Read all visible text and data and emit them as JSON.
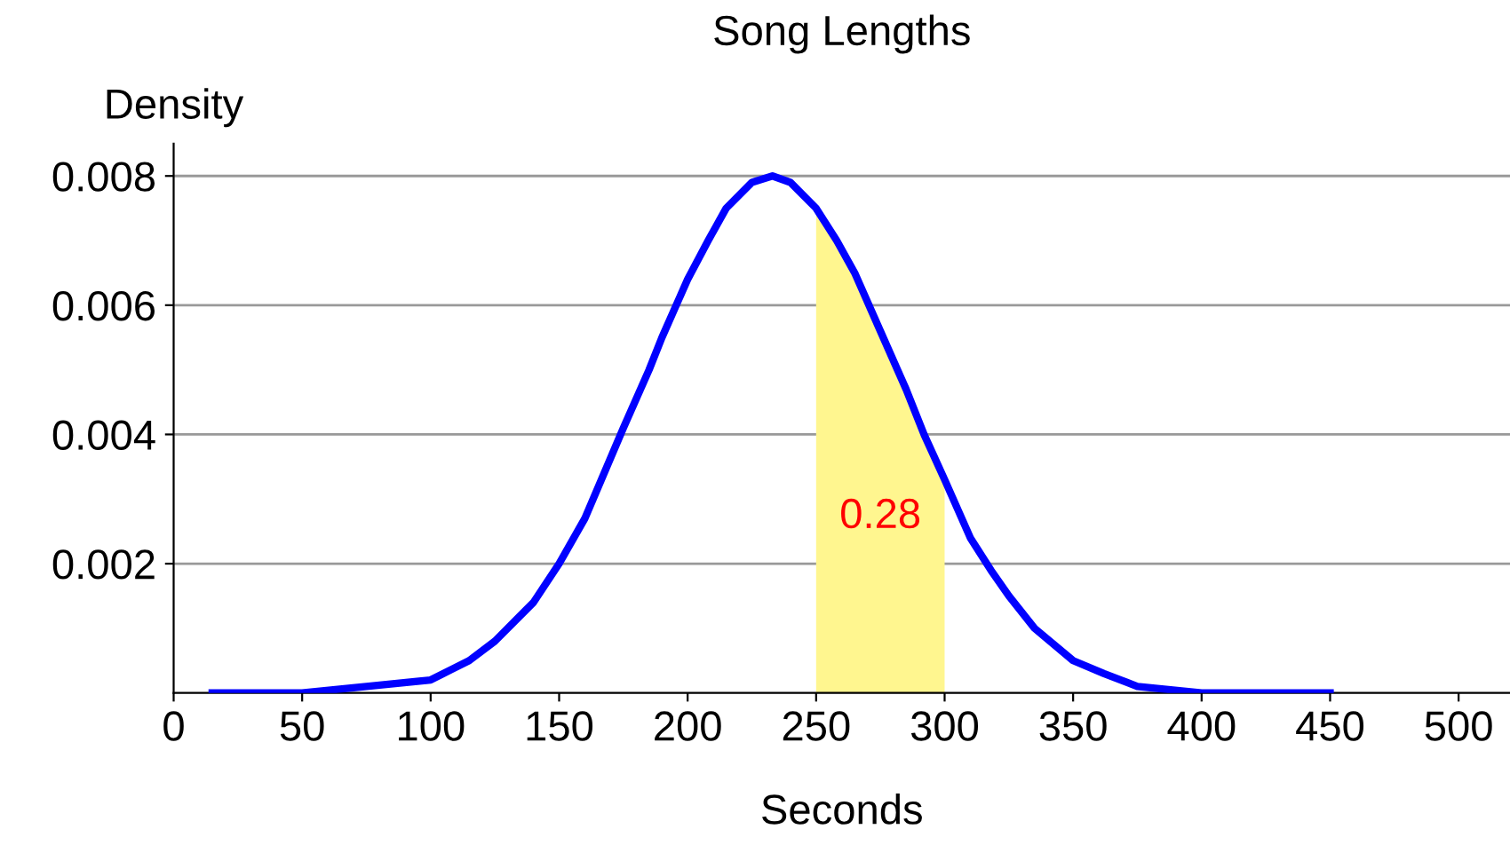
{
  "chart_data": {
    "type": "line",
    "title": "Song Lengths",
    "xlabel": "Seconds",
    "ylabel": "Density",
    "series": [
      {
        "type": "area",
        "color": "#fff68f",
        "x": [
          250,
          258,
          265,
          275,
          285,
          292,
          300
        ],
        "values": [
          0.0075,
          0.007,
          0.0065,
          0.0056,
          0.0047,
          0.004,
          0.0033
        ]
      },
      {
        "color": "#0000ff",
        "x": [
          15,
          30,
          50,
          75,
          100,
          115,
          125,
          135,
          140,
          150,
          160,
          175,
          185,
          190,
          200,
          208,
          215,
          225,
          233,
          240,
          250,
          258,
          265,
          275,
          285,
          292,
          300,
          310,
          318,
          325,
          335,
          350,
          362,
          375,
          400,
          425,
          450
        ],
        "values": [
          0,
          0,
          0,
          0.0001,
          0.0002,
          0.0005,
          0.0008,
          0.0012,
          0.0014,
          0.002,
          0.0027,
          0.0041,
          0.005,
          0.0055,
          0.0064,
          0.007,
          0.0075,
          0.0079,
          0.008,
          0.0079,
          0.0075,
          0.007,
          0.0065,
          0.0056,
          0.0047,
          0.004,
          0.0033,
          0.0024,
          0.0019,
          0.0015,
          0.001,
          0.0005,
          0.0003,
          0.0001,
          0,
          0,
          0
        ]
      }
    ],
    "annotations": [
      "0.28"
    ],
    "xlim": [
      0,
      520
    ],
    "xticks": [
      0,
      50,
      100,
      150,
      200,
      250,
      300,
      350,
      400,
      450,
      500
    ],
    "ylim": [
      0,
      0.0085
    ],
    "yticks": [
      0.002,
      0.004,
      0.006,
      0.008
    ],
    "grid": "y",
    "line_style": "solid"
  }
}
